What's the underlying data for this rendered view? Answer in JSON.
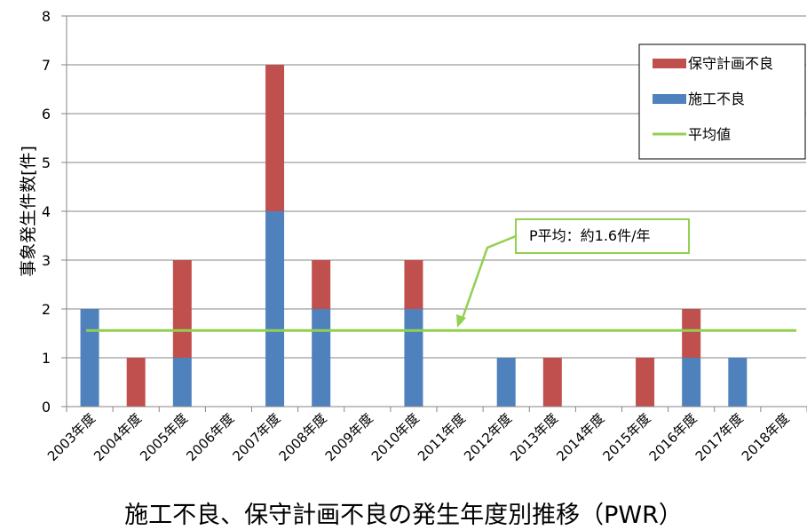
{
  "chart_data": {
    "type": "bar",
    "stacked": true,
    "categories": [
      "2003年度",
      "2004年度",
      "2005年度",
      "2006年度",
      "2007年度",
      "2008年度",
      "2009年度",
      "2010年度",
      "2011年度",
      "2012年度",
      "2013年度",
      "2014年度",
      "2015年度",
      "2016年度",
      "2017年度",
      "2018年度"
    ],
    "series": [
      {
        "name": "施工不良",
        "color": "#4f81bd",
        "values": [
          2,
          0,
          1,
          0,
          4,
          2,
          0,
          2,
          0,
          1,
          0,
          0,
          0,
          1,
          1,
          0
        ]
      },
      {
        "name": "保守計画不良",
        "color": "#c0504d",
        "values": [
          0,
          1,
          2,
          0,
          3,
          1,
          0,
          1,
          0,
          0,
          1,
          0,
          1,
          1,
          0,
          0
        ]
      }
    ],
    "average": {
      "name": "平均値",
      "value": 1.56,
      "color": "#92d050"
    },
    "annotation": "P平均：約1.6件/年",
    "ylabel": "事象発生件数[件]",
    "title": "施工不良、保守計画不良の発生年度別推移（PWR）",
    "ylim": [
      0,
      8
    ],
    "yticks": [
      0,
      1,
      2,
      3,
      4,
      5,
      6,
      7,
      8
    ],
    "grid": true,
    "legend_position": "top-right",
    "legend": [
      {
        "label": "保守計画不良",
        "color": "#c0504d",
        "kind": "bar"
      },
      {
        "label": "施工不良",
        "color": "#4f81bd",
        "kind": "bar"
      },
      {
        "label": "平均値",
        "color": "#92d050",
        "kind": "line"
      }
    ]
  }
}
